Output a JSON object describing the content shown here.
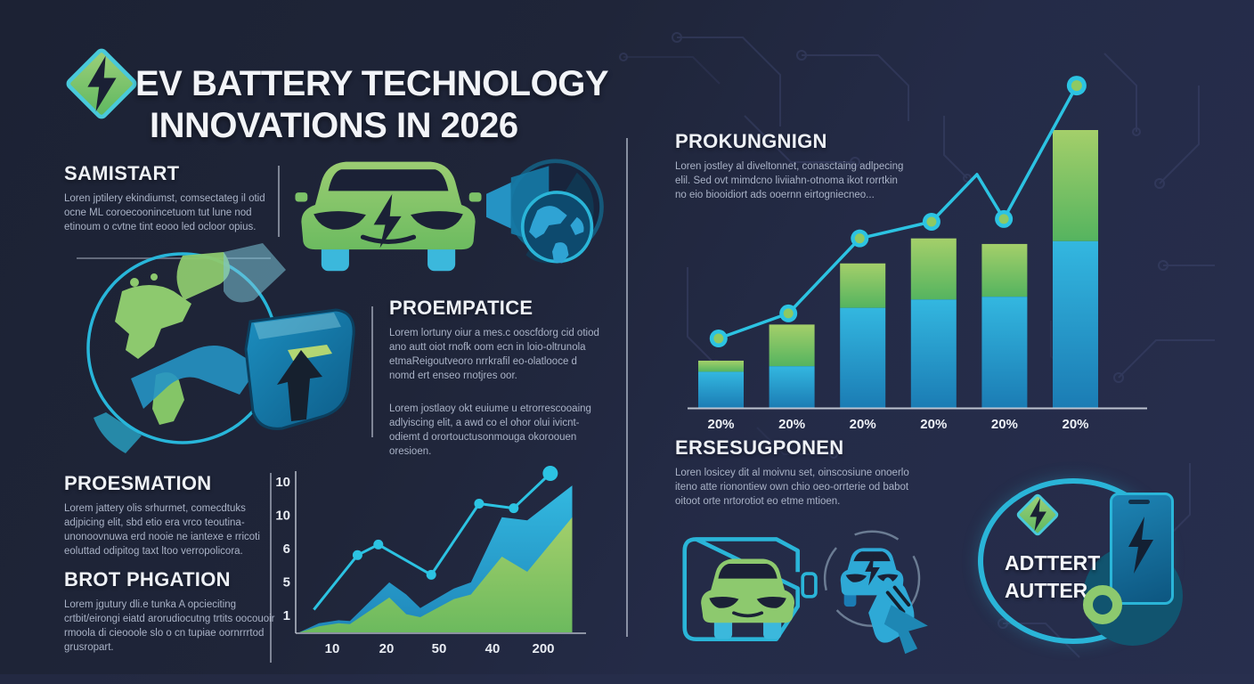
{
  "header": {
    "title_line1": "EV BATTERY TECHNOLOGY",
    "title_line2": "INNOVATIONS IN 2026"
  },
  "sections": {
    "samistart": {
      "heading": "SAMISTART",
      "body": "Loren jptilery ekindiumst, comsectateg il otid ocne ML coroecoonincetuom tut lune nod etinoum o cvtne tint eooo led ocloor opius."
    },
    "proempatice": {
      "heading": "PROEMPATICE",
      "body1": "Lorem lortuny oiur a mes.c ooscfdorg cid otiod ano autt oiot rnofk oom ecn in loio-oltrunola etmaReigoutveoro nrrkrafil eo-olatlooce d nomd ert enseo rnotjres oor.",
      "body2": "Lorem jostlaoy okt euiume u etrorrescooaing adlyiscing elit, a awd co el ohor olui ivicnt-odiemt d orortouctusonmouga okoroouen oresioen."
    },
    "proesmation": {
      "heading": "PROESMATION",
      "body": "Lorem jattery olis srhurmet, comecdtuks adjpicing elit, sbd etio era vrco teoutina-unonoovnuwa erd nooie ne iantexe e rricoti eoluttad odipitog taxt ltoo verropolicora."
    },
    "brot_phgation": {
      "heading": "BROT PHGATION",
      "body": "Lorem jgutury dli.e tunka A opcieciting crtbit/eirongi eiatd arorudiocutng trtits oocouoir rmoola di cieooole slo o cn tupiae oornrrrtod grusropart."
    },
    "prokungnign": {
      "heading": "PROKUNGNIGN",
      "body": "Loren jostley al diveltonnet, conasctaing adlpecing elil. Sed ovt mimdcno liviiahn-otnoma ikot rorrtkin no eio biooidiort ads ooernn eirtogniecneo..."
    },
    "ersesugponen": {
      "heading": "ERSESUGPONEN",
      "body": "Loren losicey dit al moivnu set, oinscosiune onoerlo iteno atte rionontiew own chio oeo-orrterie od babot oitoot orte nrtorotiot eo etme mtioen."
    },
    "adttert": {
      "line1": "ADTTERT",
      "line2": "AUTTER"
    }
  },
  "icons": {
    "logo": "lightning-diamond-icon",
    "car": "electric-car-front-icon",
    "megaphone_globe": "megaphone-globe-head-icon",
    "globe_shield": "globe-battery-shield-icon",
    "battery_car": "car-in-battery-outline-icon",
    "car_hand": "car-touch-hand-cursor-icon",
    "badge": "battery-phone-badge-icon"
  },
  "colors": {
    "background": "#212741",
    "accent_teal": "#2cc3e2",
    "accent_green": "#8dc96e",
    "bar_blue": "#29a8d8",
    "heading_text": "#eef1f6",
    "body_text": "#a9b2c6"
  },
  "chart_data": [
    {
      "name": "center-growth-area-chart",
      "type": "area",
      "title": "",
      "xlabel": "",
      "ylabel": "",
      "grid": false,
      "legend": "none",
      "y_tick_labels": [
        "10",
        "10",
        "6",
        "5",
        "1"
      ],
      "x_tick_labels": [
        "10",
        "20",
        "50",
        "40",
        "200"
      ],
      "ylim": [
        0,
        11
      ],
      "line_series": {
        "name": "teal-marker-line",
        "x_pct": [
          5.2,
          20.7,
          28.1,
          46.9,
          63.9,
          76.2,
          89.2
        ],
        "values": [
          1.5,
          5.1,
          5.8,
          3.8,
          8.5,
          8.2,
          10.5
        ],
        "has_marker": [
          false,
          true,
          true,
          true,
          true,
          true,
          true
        ]
      },
      "blue_area": {
        "name": "blue-area-series",
        "x_pct": [
          0,
          7,
          14,
          18,
          32,
          38,
          43,
          55,
          61,
          72,
          81,
          97
        ],
        "values": [
          0,
          0.6,
          0.8,
          0.75,
          3.3,
          2.5,
          1.6,
          2.9,
          3.3,
          7.6,
          7.4,
          9.7
        ]
      },
      "green_area": {
        "name": "green-area-series",
        "x_pct": [
          0,
          7,
          14,
          18,
          32,
          38,
          43,
          55,
          61,
          72,
          81,
          97
        ],
        "values": [
          0,
          0.4,
          0.6,
          0.55,
          2.3,
          1.2,
          1.0,
          2.2,
          2.5,
          5.0,
          4.0,
          7.6
        ]
      }
    },
    {
      "name": "right-stacked-bar-chart",
      "type": "bar",
      "title": "",
      "xlabel": "",
      "ylabel": "",
      "grid": false,
      "legend": "none",
      "categories": [
        "20%",
        "20%",
        "20%",
        "20%",
        "20%",
        "20%"
      ],
      "series": [
        {
          "name": "blue-lower-segment",
          "values": [
            13,
            15,
            36,
            39,
            40,
            60
          ]
        },
        {
          "name": "green-upper-segment",
          "values": [
            4,
            15,
            16,
            22,
            19,
            40
          ]
        }
      ],
      "ylim": [
        0,
        116
      ],
      "line_overlay": {
        "name": "teal-trend-line",
        "x_pct": [
          10.5,
          24.5,
          38.8,
          53.2,
          62.3,
          67.7,
          82.3
        ],
        "values": [
          25,
          34,
          61,
          67,
          84,
          68,
          116
        ],
        "has_marker": [
          true,
          true,
          true,
          true,
          false,
          true,
          true
        ]
      }
    }
  ]
}
